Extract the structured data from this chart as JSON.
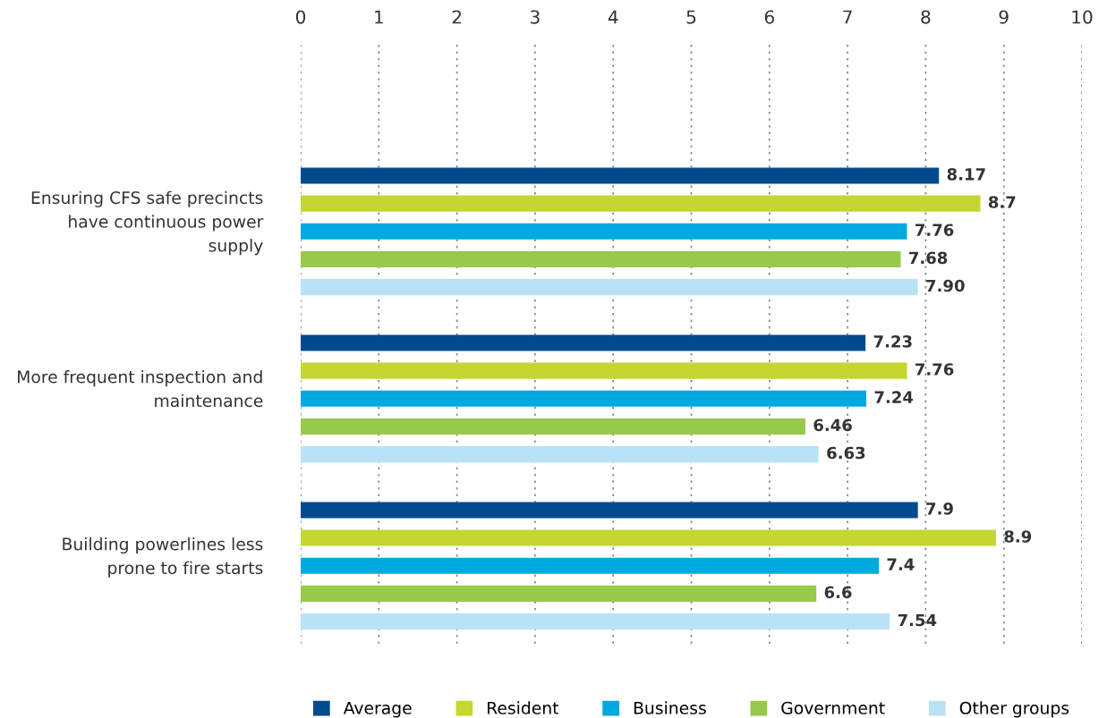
{
  "chart_data": {
    "type": "bar",
    "orientation": "horizontal",
    "categories": [
      "Ensuring CFS safe precincts\nhave continuous power\nsupply",
      "More frequent inspection and\nmaintenance",
      "Building powerlines less\nprone to fire starts"
    ],
    "series": [
      {
        "name": "Average",
        "color": "#004b8d",
        "values": [
          8.17,
          7.23,
          7.9
        ],
        "value_labels": [
          "8.17",
          "7.23",
          "7.9"
        ]
      },
      {
        "name": "Resident",
        "color": "#c4d730",
        "values": [
          8.7,
          7.76,
          8.9
        ],
        "value_labels": [
          "8.7",
          "7.76",
          "8.9"
        ]
      },
      {
        "name": "Business",
        "color": "#00a9e0",
        "values": [
          7.76,
          7.24,
          7.4
        ],
        "value_labels": [
          "7.76",
          "7.24",
          "7.4"
        ]
      },
      {
        "name": "Government",
        "color": "#97c94a",
        "values": [
          7.68,
          6.46,
          6.6
        ],
        "value_labels": [
          "7.68",
          "6.46",
          "6.6"
        ]
      },
      {
        "name": "Other groups",
        "color": "#b9e3f5",
        "values": [
          7.9,
          6.63,
          7.54
        ],
        "value_labels": [
          "7.90",
          "6.63",
          "7.54"
        ]
      }
    ],
    "xlim": [
      0,
      10
    ],
    "xticks": [
      0,
      1,
      2,
      3,
      4,
      5,
      6,
      7,
      8,
      9,
      10
    ],
    "grid": "x",
    "legend": "bottom"
  }
}
